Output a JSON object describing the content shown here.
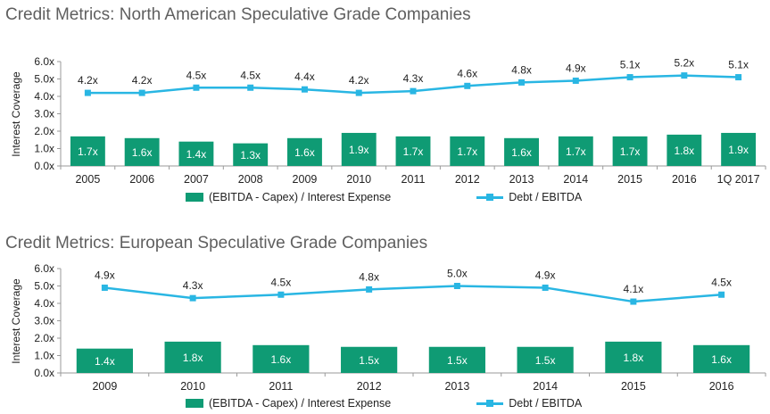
{
  "colors": {
    "bar": "#0f9b74",
    "line": "#29b6e3",
    "axis": "#9a9a9a",
    "bar_label": "#ffffff",
    "title": "#5f5f5f"
  },
  "chart_data": [
    {
      "type": "bar",
      "title": "Credit Metrics: North American Speculative Grade Companies",
      "ylabel": "Interest Coverage",
      "xlabel": "",
      "ylim": [
        0,
        6
      ],
      "yticks": [
        "0.0x",
        "1.0x",
        "2.0x",
        "3.0x",
        "4.0x",
        "5.0x",
        "6.0x"
      ],
      "categories": [
        "2005",
        "2006",
        "2007",
        "2008",
        "2009",
        "2010",
        "2011",
        "2012",
        "2013",
        "2014",
        "2015",
        "2016",
        "1Q 2017"
      ],
      "series": [
        {
          "name": "(EBITDA - Capex) / Interest Expense",
          "kind": "bar",
          "values": [
            1.7,
            1.6,
            1.4,
            1.3,
            1.6,
            1.9,
            1.7,
            1.7,
            1.6,
            1.7,
            1.7,
            1.8,
            1.9
          ],
          "labels": [
            "1.7x",
            "1.6x",
            "1.4x",
            "1.3x",
            "1.6x",
            "1.9x",
            "1.7x",
            "1.7x",
            "1.6x",
            "1.7x",
            "1.7x",
            "1.8x",
            "1.9x"
          ]
        },
        {
          "name": "Debt / EBITDA",
          "kind": "line",
          "values": [
            4.2,
            4.2,
            4.5,
            4.5,
            4.4,
            4.2,
            4.3,
            4.6,
            4.8,
            4.9,
            5.1,
            5.2,
            5.1
          ],
          "labels": [
            "4.2x",
            "4.2x",
            "4.5x",
            "4.5x",
            "4.4x",
            "4.2x",
            "4.3x",
            "4.6x",
            "4.8x",
            "4.9x",
            "5.1x",
            "5.2x",
            "5.1x"
          ]
        }
      ],
      "legend": "bottom",
      "grid": false
    },
    {
      "type": "bar",
      "title": "Credit Metrics: European Speculative Grade Companies",
      "ylabel": "Interest Coverage",
      "xlabel": "",
      "ylim": [
        0,
        6
      ],
      "yticks": [
        "0.0x",
        "1.0x",
        "2.0x",
        "3.0x",
        "4.0x",
        "5.0x",
        "6.0x"
      ],
      "categories": [
        "2009",
        "2010",
        "2011",
        "2012",
        "2013",
        "2014",
        "2015",
        "2016"
      ],
      "series": [
        {
          "name": "(EBITDA - Capex) / Interest Expense",
          "kind": "bar",
          "values": [
            1.4,
            1.8,
            1.6,
            1.5,
            1.5,
            1.5,
            1.8,
            1.6
          ],
          "labels": [
            "1.4x",
            "1.8x",
            "1.6x",
            "1.5x",
            "1.5x",
            "1.5x",
            "1.8x",
            "1.6x"
          ]
        },
        {
          "name": "Debt / EBITDA",
          "kind": "line",
          "values": [
            4.9,
            4.3,
            4.5,
            4.8,
            5.0,
            4.9,
            4.1,
            4.5
          ],
          "labels": [
            "4.9x",
            "4.3x",
            "4.5x",
            "4.8x",
            "5.0x",
            "4.9x",
            "4.1x",
            "4.5x"
          ]
        }
      ],
      "legend": "bottom",
      "grid": false
    }
  ]
}
